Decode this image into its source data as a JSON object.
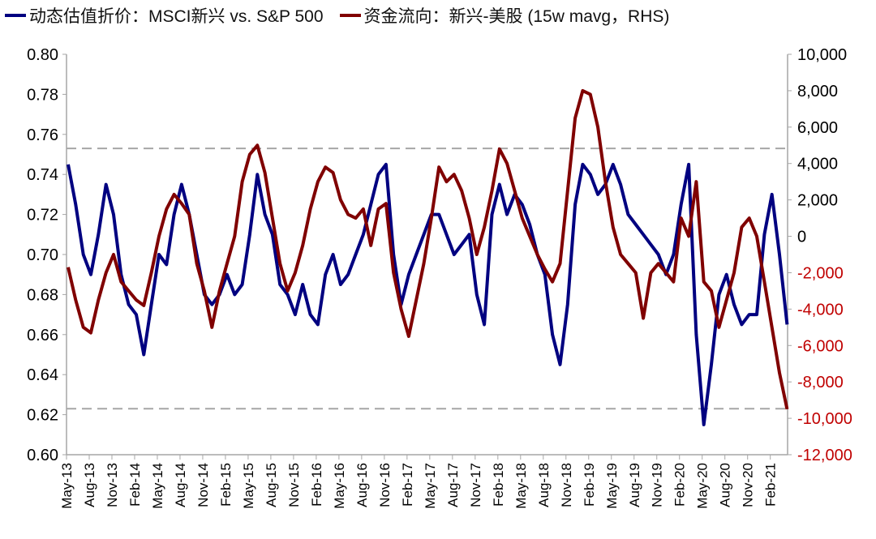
{
  "chart_data": {
    "type": "line",
    "title": "",
    "legend_position": "top",
    "grid": false,
    "x_tick_labels": [
      "May-13",
      "Aug-13",
      "Nov-13",
      "Feb-14",
      "May-14",
      "Aug-14",
      "Nov-14",
      "Feb-15",
      "May-15",
      "Aug-15",
      "Nov-15",
      "Feb-16",
      "May-16",
      "Aug-16",
      "Nov-16",
      "Feb-17",
      "May-17",
      "Aug-17",
      "Nov-17",
      "Feb-18",
      "May-18",
      "Aug-18",
      "Nov-18",
      "Feb-19",
      "May-19",
      "Aug-19",
      "Nov-19",
      "Feb-20",
      "May-20",
      "Aug-20",
      "Nov-20",
      "Feb-21"
    ],
    "x": [
      "2013-05",
      "2013-06",
      "2013-07",
      "2013-08",
      "2013-09",
      "2013-10",
      "2013-11",
      "2013-12",
      "2014-01",
      "2014-02",
      "2014-03",
      "2014-04",
      "2014-05",
      "2014-06",
      "2014-07",
      "2014-08",
      "2014-09",
      "2014-10",
      "2014-11",
      "2014-12",
      "2015-01",
      "2015-02",
      "2015-03",
      "2015-04",
      "2015-05",
      "2015-06",
      "2015-07",
      "2015-08",
      "2015-09",
      "2015-10",
      "2015-11",
      "2015-12",
      "2016-01",
      "2016-02",
      "2016-03",
      "2016-04",
      "2016-05",
      "2016-06",
      "2016-07",
      "2016-08",
      "2016-09",
      "2016-10",
      "2016-11",
      "2016-12",
      "2017-01",
      "2017-02",
      "2017-03",
      "2017-04",
      "2017-05",
      "2017-06",
      "2017-07",
      "2017-08",
      "2017-09",
      "2017-10",
      "2017-11",
      "2017-12",
      "2018-01",
      "2018-02",
      "2018-03",
      "2018-04",
      "2018-05",
      "2018-06",
      "2018-07",
      "2018-08",
      "2018-09",
      "2018-10",
      "2018-11",
      "2018-12",
      "2019-01",
      "2019-02",
      "2019-03",
      "2019-04",
      "2019-05",
      "2019-06",
      "2019-07",
      "2019-08",
      "2019-09",
      "2019-10",
      "2019-11",
      "2019-12",
      "2020-01",
      "2020-02",
      "2020-03",
      "2020-04",
      "2020-05",
      "2020-06",
      "2020-07",
      "2020-08",
      "2020-09",
      "2020-10",
      "2020-11",
      "2020-12",
      "2021-01",
      "2021-02",
      "2021-03",
      "2021-04"
    ],
    "y_left": {
      "lim": [
        0.6,
        0.8
      ],
      "ticks": [
        "0.80",
        "0.78",
        "0.76",
        "0.74",
        "0.72",
        "0.70",
        "0.68",
        "0.66",
        "0.64",
        "0.62",
        "0.60"
      ]
    },
    "y_right": {
      "lim": [
        -12000,
        10000
      ],
      "ticks": [
        "10,000",
        "8,000",
        "6,000",
        "4,000",
        "2,000",
        "0",
        "-2,000",
        "-4,000",
        "-6,000",
        "-8,000",
        "-10,000",
        "-12,000"
      ],
      "negative_color": "#c00000"
    },
    "reference_lines": [
      {
        "axis": "left",
        "value": 0.753,
        "style": "dashed",
        "color": "#a6a6a6"
      },
      {
        "axis": "left",
        "value": 0.623,
        "style": "dashed",
        "color": "#a6a6a6"
      }
    ],
    "series": [
      {
        "name": "动态估值折价：MSCI新兴 vs. S&P 500",
        "axis": "left",
        "color": "#000080",
        "values": [
          0.745,
          0.725,
          0.7,
          0.69,
          0.71,
          0.735,
          0.72,
          0.69,
          0.675,
          0.67,
          0.65,
          0.675,
          0.7,
          0.695,
          0.72,
          0.735,
          0.72,
          0.7,
          0.68,
          0.675,
          0.68,
          0.69,
          0.68,
          0.685,
          0.71,
          0.74,
          0.72,
          0.71,
          0.685,
          0.68,
          0.67,
          0.685,
          0.67,
          0.665,
          0.69,
          0.7,
          0.685,
          0.69,
          0.7,
          0.71,
          0.725,
          0.74,
          0.745,
          0.7,
          0.675,
          0.69,
          0.7,
          0.71,
          0.72,
          0.72,
          0.71,
          0.7,
          0.705,
          0.71,
          0.68,
          0.665,
          0.72,
          0.735,
          0.72,
          0.73,
          0.725,
          0.715,
          0.7,
          0.69,
          0.66,
          0.645,
          0.675,
          0.725,
          0.745,
          0.74,
          0.73,
          0.735,
          0.745,
          0.735,
          0.72,
          0.715,
          0.71,
          0.705,
          0.7,
          0.69,
          0.7,
          0.725,
          0.745,
          0.66,
          0.615,
          0.645,
          0.68,
          0.69,
          0.675,
          0.665,
          0.67,
          0.67,
          0.71,
          0.73,
          0.7,
          0.665
        ]
      },
      {
        "name": "资金流向：新兴-美股 (15w mavg，RHS)",
        "axis": "right",
        "color": "#800000",
        "values": [
          -1700,
          -3500,
          -5000,
          -5300,
          -3500,
          -2000,
          -1000,
          -2500,
          -3000,
          -3500,
          -3800,
          -2000,
          0,
          1500,
          2300,
          1800,
          1200,
          -1500,
          -3000,
          -5000,
          -3000,
          -1500,
          0,
          3000,
          4500,
          5000,
          3500,
          1000,
          -1500,
          -3000,
          -2000,
          -500,
          1500,
          3000,
          3800,
          3500,
          2000,
          1200,
          1000,
          1500,
          -500,
          1500,
          1800,
          -2000,
          -4000,
          -5500,
          -3500,
          -1500,
          1000,
          3800,
          3000,
          3400,
          2500,
          1000,
          -1000,
          500,
          2500,
          4800,
          4000,
          2500,
          1000,
          0,
          -1000,
          -1800,
          -2500,
          -1500,
          2500,
          6500,
          8000,
          7800,
          6000,
          3000,
          500,
          -1000,
          -1500,
          -2000,
          -4500,
          -2000,
          -1500,
          -2000,
          -2500,
          1000,
          0,
          3000,
          -2500,
          -3000,
          -5000,
          -3500,
          -2000,
          500,
          1000,
          0,
          -2500,
          -5000,
          -7500,
          -9500
        ]
      }
    ]
  }
}
